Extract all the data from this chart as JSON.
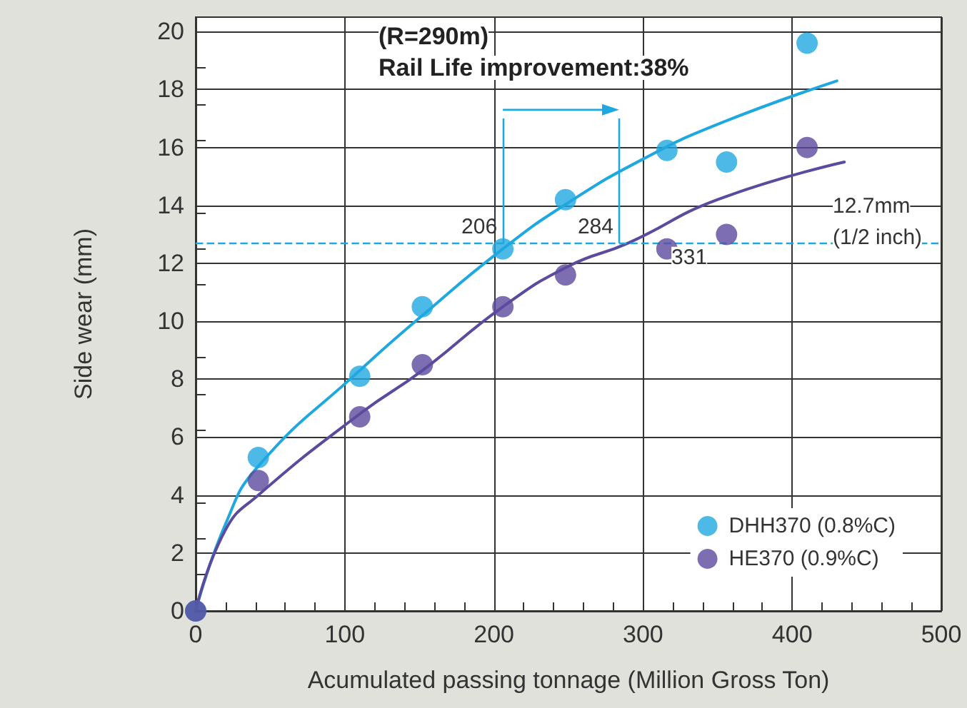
{
  "chart_data": {
    "type": "scatter",
    "xlabel": "Acumulated passing tonnage (Million Gross Ton)",
    "ylabel": "Side wear (mm)",
    "xlim": [
      0,
      500
    ],
    "xticks": [
      0,
      100,
      200,
      300,
      400,
      500
    ],
    "ylim": [
      0,
      20.5
    ],
    "yticks": [
      0,
      2,
      4,
      6,
      8,
      10,
      12,
      14,
      16,
      18,
      20
    ],
    "grid": true,
    "legend": "bottom right",
    "series": [
      {
        "name": "DHH370 (0.8%C)",
        "marker": "circle",
        "color": "#1fa8e0",
        "x": [
          0,
          42,
          110,
          152,
          206,
          248,
          316,
          356,
          410
        ],
        "values": [
          0,
          5.3,
          8.1,
          10.5,
          12.5,
          14.2,
          15.9,
          15.5,
          19.6
        ]
      },
      {
        "name": "HE370 (0.9%C)",
        "marker": "circle",
        "color": "#5b4a9e",
        "x": [
          0,
          42,
          110,
          152,
          206,
          248,
          316,
          356,
          410
        ],
        "values": [
          0,
          4.5,
          6.7,
          8.5,
          10.5,
          11.6,
          12.5,
          13.0,
          16.0
        ]
      },
      {
        "type": "line",
        "marker": "none",
        "color": "#1fa8e0",
        "x": [
          0,
          20,
          42,
          110,
          152,
          206,
          250,
          300,
          350,
          430
        ],
        "values": [
          0,
          3,
          5,
          8.3,
          10.2,
          12.5,
          14.1,
          15.6,
          16.8,
          18.3
        ]
      },
      {
        "type": "line",
        "marker": "none",
        "color": "#5b4a9e",
        "x": [
          0,
          20,
          42,
          110,
          152,
          206,
          250,
          290,
          350,
          435
        ],
        "values": [
          0,
          2.8,
          4,
          6.8,
          8.3,
          10.5,
          11.9,
          12.7,
          14.2,
          15.5
        ]
      }
    ],
    "ref_lines": [
      {
        "axis": "y",
        "value": 12.7,
        "label": null,
        "color": "#1fa8e0",
        "line_style": "dashed"
      },
      {
        "axis": "x",
        "value": 206,
        "label": "206",
        "color": "#1fa8e0",
        "line_style": "solid"
      },
      {
        "axis": "x",
        "value": 284,
        "label": "284",
        "color": "#1fa8e0",
        "line_style": "solid"
      }
    ],
    "annotations": [
      "(R=290m)",
      "Rail Life improvement:38%",
      {
        "text": "331",
        "x": 331,
        "y": 12.2
      },
      "12.7mm",
      "(1/2 inch)"
    ]
  }
}
